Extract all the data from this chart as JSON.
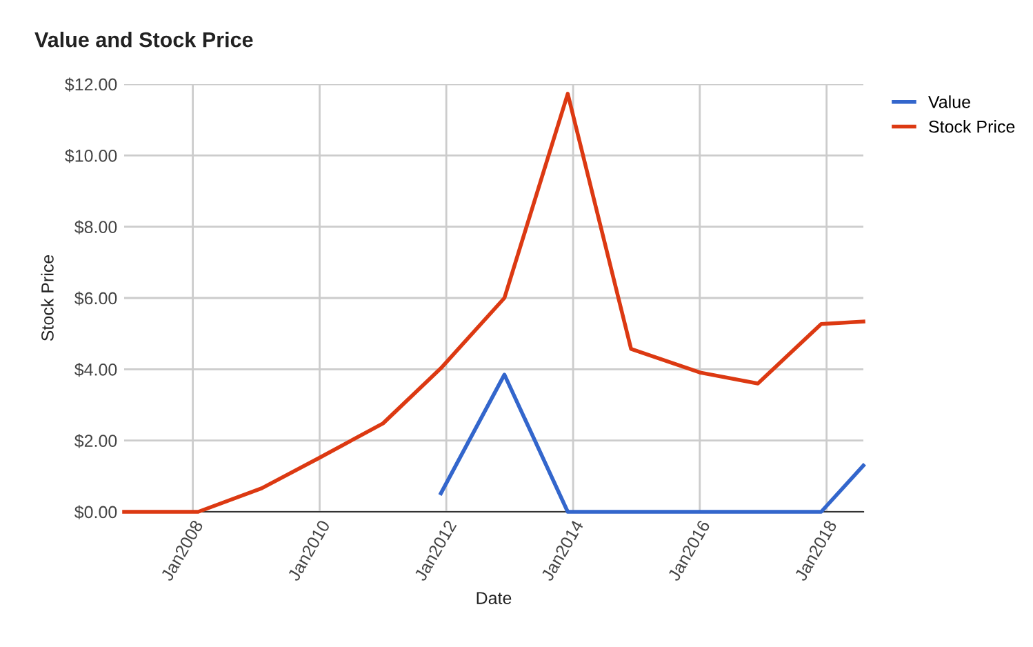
{
  "chart_data": {
    "type": "line",
    "title": "Value and Stock Price",
    "xlabel": "Date",
    "ylabel": "Stock Price",
    "x": [
      "2006-12",
      "2008-02",
      "2009-02",
      "2010-01",
      "2011-01",
      "2011-12",
      "2012-12",
      "2013-12",
      "2014-12",
      "2016-01",
      "2016-12",
      "2017-12",
      "2018-08"
    ],
    "series": [
      {
        "name": "Value",
        "color": "#3366cc",
        "values": [
          null,
          null,
          null,
          null,
          null,
          0.52,
          3.85,
          0,
          0,
          0,
          0,
          0,
          1.3
        ]
      },
      {
        "name": "Stock Price",
        "color": "#dc3912",
        "values": [
          0,
          0,
          0.66,
          1.52,
          2.48,
          4.03,
          6.0,
          11.73,
          4.57,
          3.91,
          3.6,
          5.27,
          5.34
        ]
      }
    ],
    "xlim": [
      "2006-12",
      "2018-08"
    ],
    "xticks": [
      {
        "value": "2008-01",
        "label": "Jan2008"
      },
      {
        "value": "2010-01",
        "label": "Jan2010"
      },
      {
        "value": "2012-01",
        "label": "Jan2012"
      },
      {
        "value": "2014-01",
        "label": "Jan2014"
      },
      {
        "value": "2016-01",
        "label": "Jan2016"
      },
      {
        "value": "2018-01",
        "label": "Jan2018"
      }
    ],
    "ylim": [
      0,
      12
    ],
    "yticks": [
      {
        "value": 0,
        "label": "$0.00"
      },
      {
        "value": 2,
        "label": "$2.00"
      },
      {
        "value": 4,
        "label": "$4.00"
      },
      {
        "value": 6,
        "label": "$6.00"
      },
      {
        "value": 8,
        "label": "$8.00"
      },
      {
        "value": 10,
        "label": "$10.00"
      },
      {
        "value": 12,
        "label": "$12.00"
      }
    ],
    "grid": true,
    "legend": "top right",
    "line_style": "solid",
    "marker": "none"
  }
}
